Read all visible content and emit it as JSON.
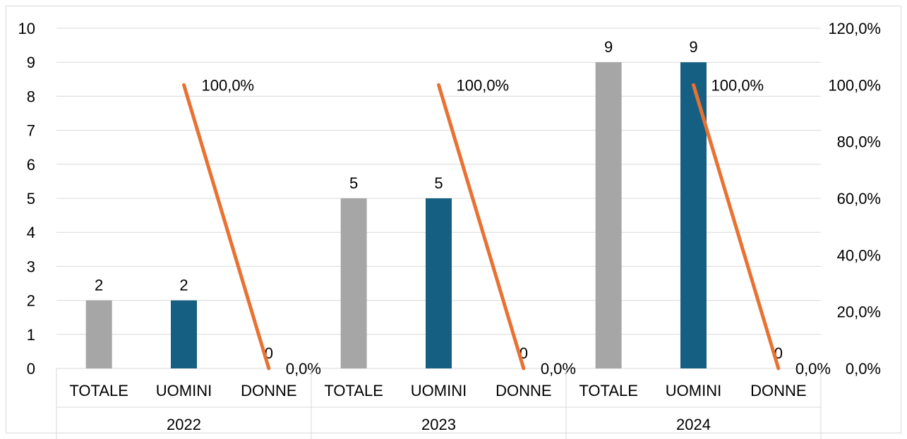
{
  "chart_data": {
    "type": "bar",
    "groups": [
      {
        "label": "2022",
        "categories": [
          "TOTALE",
          "UOMINI",
          "DONNE"
        ]
      },
      {
        "label": "2023",
        "categories": [
          "TOTALE",
          "UOMINI",
          "DONNE"
        ]
      },
      {
        "label": "2024",
        "categories": [
          "TOTALE",
          "UOMINI",
          "DONNE"
        ]
      }
    ],
    "bar_series": [
      {
        "values": [
          2,
          2,
          0,
          5,
          5,
          0,
          9,
          9,
          0
        ],
        "colors": [
          "#a6a6a6",
          "#156082",
          "#156082",
          "#a6a6a6",
          "#156082",
          "#156082",
          "#a6a6a6",
          "#156082",
          "#156082"
        ]
      }
    ],
    "bar_labels": [
      "2",
      "2",
      "0",
      "5",
      "5",
      "0",
      "9",
      "9",
      "0"
    ],
    "line_series": {
      "color": "#e97132",
      "values_pct": [
        100.0,
        0.0,
        100.0,
        0.0,
        100.0,
        0.0
      ],
      "labels": [
        "100,0%",
        "0,0%",
        "100,0%",
        "0,0%",
        "100,0%",
        "0,0%"
      ],
      "x_positions": [
        "UOMINI",
        "DONNE",
        "UOMINI",
        "DONNE",
        "UOMINI",
        "DONNE"
      ]
    },
    "left_axis": {
      "min": 0,
      "max": 10,
      "step": 1,
      "tick_labels": [
        "0",
        "1",
        "2",
        "3",
        "4",
        "5",
        "6",
        "7",
        "8",
        "9",
        "10"
      ]
    },
    "right_axis": {
      "min": 0,
      "max": 120,
      "step": 20,
      "tick_labels": [
        "0,0%",
        "20,0%",
        "40,0%",
        "60,0%",
        "80,0%",
        "100,0%",
        "120,0%"
      ]
    },
    "grid": true,
    "title": "",
    "legend": "none"
  }
}
